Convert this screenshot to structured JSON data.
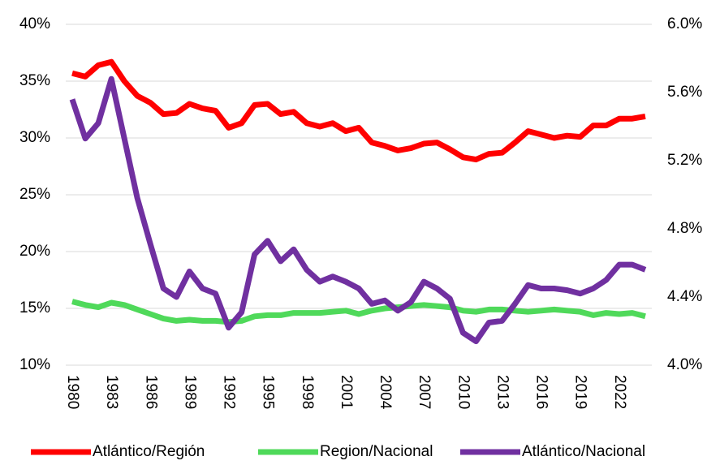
{
  "chart_data": {
    "type": "line",
    "categories": [
      "1980",
      null,
      null,
      "1983",
      null,
      null,
      "1986",
      null,
      null,
      "1989",
      null,
      null,
      "1992",
      null,
      null,
      "1995",
      null,
      null,
      "1998",
      null,
      null,
      "2001",
      null,
      null,
      "2004",
      null,
      null,
      "2007",
      null,
      null,
      "2010",
      null,
      null,
      "2013",
      null,
      null,
      "2016",
      null,
      null,
      "2019",
      null,
      null,
      "2022",
      null,
      null
    ],
    "ylim": [
      10,
      40
    ],
    "yticks": [
      {
        "value": 10,
        "label": "10%"
      },
      {
        "value": 15,
        "label": "15%"
      },
      {
        "value": 20,
        "label": "20%"
      },
      {
        "value": 25,
        "label": "25%"
      },
      {
        "value": 30,
        "label": "30%"
      },
      {
        "value": 35,
        "label": "35%"
      },
      {
        "value": 40,
        "label": "40%"
      }
    ],
    "y2lim": [
      4.0,
      6.0
    ],
    "y2ticks": [
      {
        "value": 4.0,
        "label": "4.0%"
      },
      {
        "value": 4.4,
        "label": "4.4%"
      },
      {
        "value": 4.8,
        "label": "4.8%"
      },
      {
        "value": 5.2,
        "label": "5.2%"
      },
      {
        "value": 5.6,
        "label": "5.6%"
      },
      {
        "value": 6.0,
        "label": "6.0%"
      }
    ],
    "grid": true,
    "legend": "bottom",
    "series": [
      {
        "name": "Atlántico/Región",
        "color": "#ff0000",
        "values": [
          35.7,
          35.4,
          36.4,
          36.7,
          35.0,
          33.7,
          33.1,
          32.1,
          32.2,
          33.0,
          32.6,
          32.4,
          30.9,
          31.3,
          32.9,
          33.0,
          32.1,
          32.3,
          31.3,
          31.0,
          31.3,
          30.6,
          30.9,
          29.6,
          29.3,
          28.9,
          29.1,
          29.5,
          29.6,
          29.0,
          28.3,
          28.1,
          28.6,
          28.7,
          29.6,
          30.6,
          30.3,
          30.0,
          30.2,
          30.1,
          31.1,
          31.1,
          31.7,
          31.7,
          31.9
        ]
      },
      {
        "name": "Region/Nacional",
        "color": "#4fd95a",
        "values": [
          15.6,
          15.3,
          15.1,
          15.5,
          15.3,
          14.9,
          14.5,
          14.1,
          13.9,
          14.0,
          13.9,
          13.9,
          13.8,
          13.9,
          14.3,
          14.4,
          14.4,
          14.6,
          14.6,
          14.6,
          14.7,
          14.8,
          14.5,
          14.8,
          15.0,
          15.1,
          15.2,
          15.3,
          15.2,
          15.1,
          14.8,
          14.7,
          14.9,
          14.9,
          14.8,
          14.7,
          14.8,
          14.9,
          14.8,
          14.7,
          14.4,
          14.6,
          14.5,
          14.6,
          14.3
        ]
      },
      {
        "name": "Atlántico/Nacional",
        "color": "#7030a0",
        "axis": "y2",
        "values": [
          5.56,
          5.33,
          5.42,
          5.68,
          5.33,
          4.98,
          4.71,
          4.45,
          4.4,
          4.55,
          4.45,
          4.42,
          4.22,
          4.31,
          4.65,
          4.73,
          4.61,
          4.68,
          4.56,
          4.49,
          4.52,
          4.49,
          4.45,
          4.36,
          4.38,
          4.32,
          4.37,
          4.49,
          4.45,
          4.39,
          4.19,
          4.14,
          4.25,
          4.26,
          4.36,
          4.47,
          4.45,
          4.45,
          4.44,
          4.42,
          4.45,
          4.5,
          4.59,
          4.59,
          4.56
        ]
      }
    ]
  }
}
